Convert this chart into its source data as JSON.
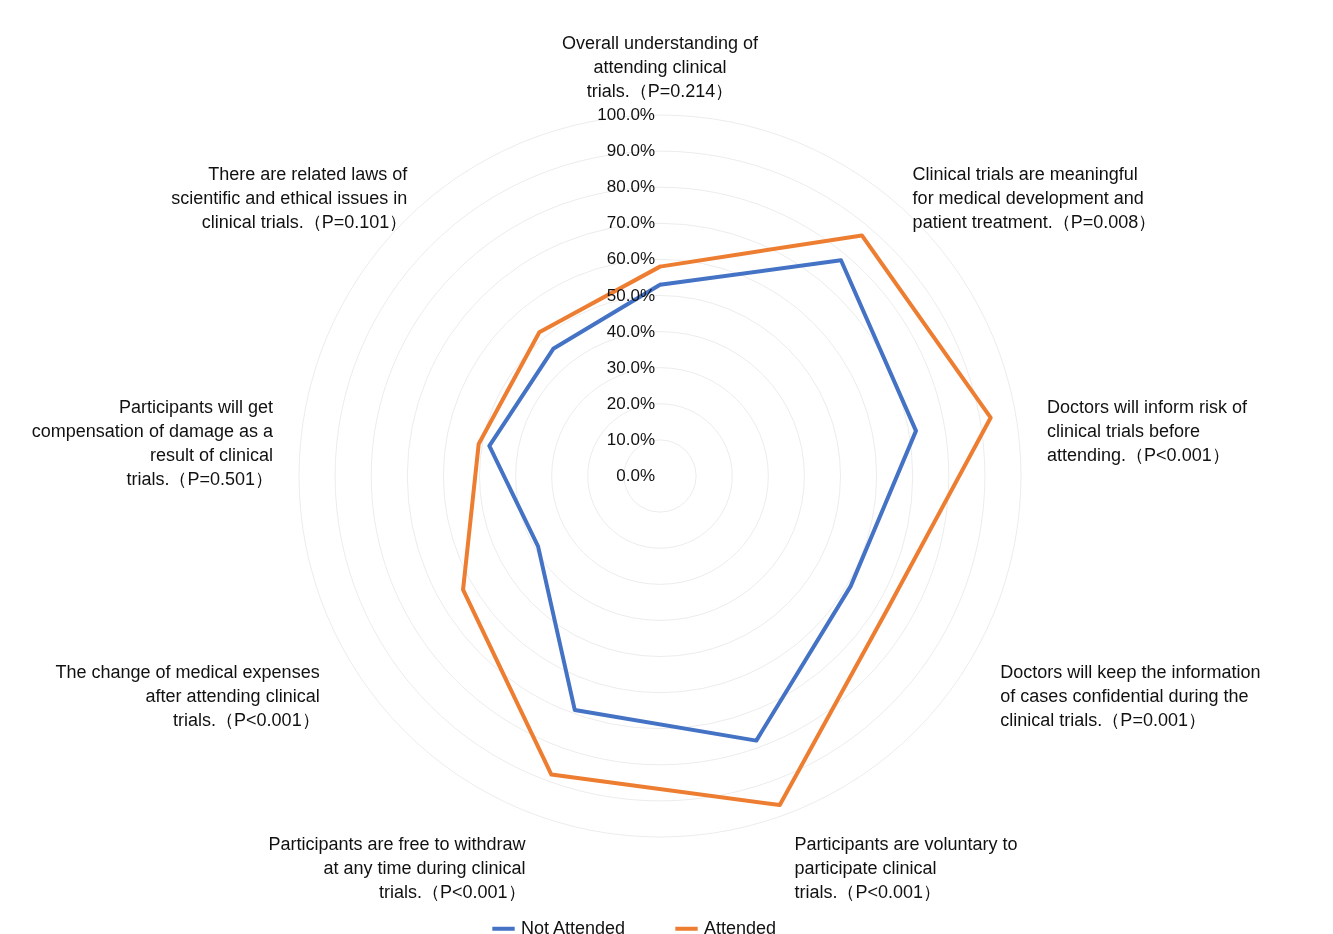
{
  "chart_data": {
    "type": "radar",
    "categories": [
      "Overall understanding of attending clinical trials.（P=0.214）",
      "Clinical trials are meaningful for medical development and patient treatment.（P=0.008）",
      "Doctors will inform risk of clinical trials before attending.（P<0.001）",
      "Doctors will keep the information of cases confidential during the clinical trials.（P=0.001）",
      "Participants are voluntary to participate clinical trials.（P<0.001）",
      "Participants are free to withdraw at any time during clinical trials.（P<0.001）",
      "The change of medical expenses after attending clinical trials.（P<0.001）",
      "Participants will get compensation of damage as a result of clinical trials.（P=0.501）",
      "There are related laws of scientific and ethical issues in clinical trials.（P=0.101）"
    ],
    "series": [
      {
        "name": "Not Attended",
        "color": "#4472c4",
        "values": [
          53,
          78,
          72,
          61,
          78,
          69,
          39,
          48,
          46
        ]
      },
      {
        "name": "Attended",
        "color": "#ed7d31",
        "values": [
          58,
          87,
          93,
          73,
          97,
          88,
          63,
          51,
          52
        ]
      }
    ],
    "ylim": [
      0,
      100
    ],
    "yticks": [
      {
        "value": 0,
        "label": "0.0%"
      },
      {
        "value": 10,
        "label": "10.0%"
      },
      {
        "value": 20,
        "label": "20.0%"
      },
      {
        "value": 30,
        "label": "30.0%"
      },
      {
        "value": 40,
        "label": "40.0%"
      },
      {
        "value": 50,
        "label": "50.0%"
      },
      {
        "value": 60,
        "label": "60.0%"
      },
      {
        "value": 70,
        "label": "70.0%"
      },
      {
        "value": 80,
        "label": "80.0%"
      },
      {
        "value": 90,
        "label": "90.0%"
      },
      {
        "value": 100,
        "label": "100.0%"
      }
    ],
    "grid": true,
    "legend": "bottom",
    "line_style": "solid",
    "marker": "none"
  }
}
